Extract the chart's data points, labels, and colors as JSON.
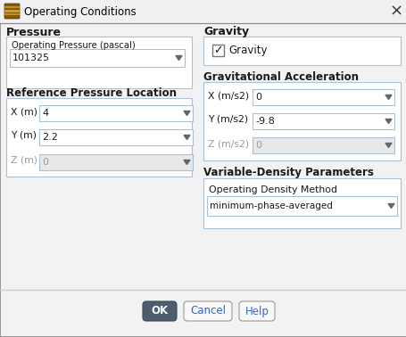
{
  "title": "Operating Conditions",
  "bg_color": "#f0f0f0",
  "dialog_bg": "#f2f2f2",
  "border_color": "#888888",
  "section_left": "Pressure",
  "section_right": "Gravity",
  "pressure_label": "Operating Pressure (pascal)",
  "pressure_value": "101325",
  "ref_pressure_label": "Reference Pressure Location",
  "ref_x_label": "X (m)",
  "ref_x_value": "4",
  "ref_y_label": "Y (m)",
  "ref_y_value": "2.2",
  "ref_z_label": "Z (m)",
  "ref_z_value": "0",
  "gravity_checkbox_label": "Gravity",
  "grav_accel_label": "Gravitational Acceleration",
  "grav_x_label": "X (m/s2)",
  "grav_x_value": "0",
  "grav_y_label": "Y (m/s2)",
  "grav_y_value": "-9.8",
  "grav_z_label": "Z (m/s2)",
  "grav_z_value": "0",
  "var_density_label": "Variable-Density Parameters",
  "op_density_method_label": "Operating Density Method",
  "op_density_value": "minimum-phase-averaged",
  "btn_ok": "OK",
  "btn_cancel": "Cancel",
  "btn_help": "Help",
  "input_bg": "#ffffff",
  "input_disabled_bg": "#e8e8e8",
  "input_border": "#aac0d8",
  "section_box_border": "#aac0d8",
  "bold_color": "#1a1a1a",
  "text_color": "#1a1a1a",
  "disabled_text_color": "#999999",
  "ok_btn_bg": "#4d5d6e",
  "ok_btn_text": "#ffffff",
  "cancel_btn_bg": "#f8f8f8",
  "help_btn_bg": "#f8f8f8",
  "title_bg": "#f0f0f0",
  "separator_color": "#cccccc"
}
